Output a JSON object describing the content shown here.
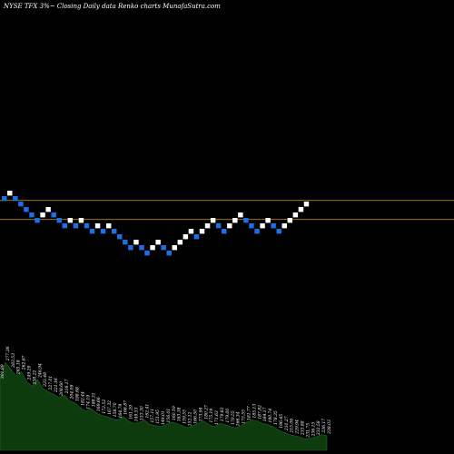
{
  "header": {
    "title": "NYSE TFX  3%~  Closing Daily data  Renko  charts MunafaSutra.com"
  },
  "colors": {
    "background": "#000000",
    "up_brick": "#ffffff",
    "down_brick": "#1e6fe6",
    "level_line": "#b8860b",
    "volume_fill": "#0d3b0d",
    "volume_edge": "#1f6b1f"
  },
  "chart_data": {
    "type": "renko",
    "title": "NYSE TFX  3%~  Closing Daily data  Renko  charts MunafaSutra.com",
    "brick_size_label": "3%~",
    "bricks": [
      {
        "level": 0,
        "dir": "down"
      },
      {
        "level": 1,
        "dir": "up"
      },
      {
        "level": 0,
        "dir": "down"
      },
      {
        "level": -1,
        "dir": "down"
      },
      {
        "level": -2,
        "dir": "down"
      },
      {
        "level": -3,
        "dir": "down"
      },
      {
        "level": -4,
        "dir": "down"
      },
      {
        "level": -3,
        "dir": "up"
      },
      {
        "level": -2,
        "dir": "up"
      },
      {
        "level": -3,
        "dir": "down"
      },
      {
        "level": -4,
        "dir": "down"
      },
      {
        "level": -5,
        "dir": "down"
      },
      {
        "level": -4,
        "dir": "up"
      },
      {
        "level": -5,
        "dir": "down"
      },
      {
        "level": -4,
        "dir": "up"
      },
      {
        "level": -5,
        "dir": "down"
      },
      {
        "level": -6,
        "dir": "down"
      },
      {
        "level": -5,
        "dir": "up"
      },
      {
        "level": -6,
        "dir": "down"
      },
      {
        "level": -5,
        "dir": "up"
      },
      {
        "level": -6,
        "dir": "down"
      },
      {
        "level": -7,
        "dir": "down"
      },
      {
        "level": -8,
        "dir": "down"
      },
      {
        "level": -9,
        "dir": "down"
      },
      {
        "level": -8,
        "dir": "up"
      },
      {
        "level": -9,
        "dir": "down"
      },
      {
        "level": -10,
        "dir": "down"
      },
      {
        "level": -9,
        "dir": "up"
      },
      {
        "level": -8,
        "dir": "up"
      },
      {
        "level": -9,
        "dir": "down"
      },
      {
        "level": -10,
        "dir": "down"
      },
      {
        "level": -9,
        "dir": "up"
      },
      {
        "level": -8,
        "dir": "up"
      },
      {
        "level": -7,
        "dir": "up"
      },
      {
        "level": -6,
        "dir": "up"
      },
      {
        "level": -7,
        "dir": "down"
      },
      {
        "level": -6,
        "dir": "up"
      },
      {
        "level": -5,
        "dir": "up"
      },
      {
        "level": -4,
        "dir": "up"
      },
      {
        "level": -5,
        "dir": "down"
      },
      {
        "level": -6,
        "dir": "down"
      },
      {
        "level": -5,
        "dir": "up"
      },
      {
        "level": -4,
        "dir": "up"
      },
      {
        "level": -3,
        "dir": "up"
      },
      {
        "level": -4,
        "dir": "down"
      },
      {
        "level": -5,
        "dir": "down"
      },
      {
        "level": -6,
        "dir": "down"
      },
      {
        "level": -5,
        "dir": "up"
      },
      {
        "level": -4,
        "dir": "up"
      },
      {
        "level": -5,
        "dir": "down"
      },
      {
        "level": -6,
        "dir": "down"
      },
      {
        "level": -5,
        "dir": "up"
      },
      {
        "level": -4,
        "dir": "up"
      },
      {
        "level": -3,
        "dir": "up"
      },
      {
        "level": -2,
        "dir": "up"
      },
      {
        "level": -1,
        "dir": "up"
      }
    ],
    "reference_levels": [
      -0.7,
      -4.2
    ],
    "volume_labels": [
      "301.89",
      "277.36",
      "283.53",
      "265.18",
      "262.67",
      "249.29",
      "238.22",
      "246.94",
      "233.48",
      "227.01",
      "221.16",
      "208.60",
      "216.17",
      "204.09",
      "198.68",
      "182.44",
      "174.19",
      "188.31",
      "169.66",
      "172.52",
      "167.32",
      "158.70",
      "164.79",
      "166.87",
      "161.29",
      "149.53",
      "153.30",
      "162.41",
      "157.11",
      "151.95",
      "149.01",
      "156.01",
      "160.19",
      "163.38",
      "159.55",
      "152.12",
      "166.50",
      "173.94",
      "180.27",
      "175.19",
      "171.63",
      "179.63",
      "179.00",
      "170.55",
      "166.34",
      "175.55",
      "181.77",
      "185.13",
      "187.82",
      "184.17",
      "190.74",
      "178.35",
      "196.45",
      "210.27",
      "215.06",
      "229.94",
      "233.88",
      "231.75",
      "236.15",
      "232.58",
      "236.17",
      "238.03"
    ],
    "volume": [
      0.62,
      0.78,
      0.72,
      0.66,
      0.7,
      0.61,
      0.57,
      0.63,
      0.55,
      0.52,
      0.5,
      0.47,
      0.49,
      0.44,
      0.42,
      0.38,
      0.35,
      0.37,
      0.33,
      0.31,
      0.3,
      0.28,
      0.27,
      0.3,
      0.26,
      0.24,
      0.25,
      0.27,
      0.23,
      0.22,
      0.21,
      0.23,
      0.25,
      0.24,
      0.22,
      0.2,
      0.22,
      0.24,
      0.26,
      0.23,
      0.21,
      0.24,
      0.23,
      0.21,
      0.2,
      0.22,
      0.25,
      0.27,
      0.26,
      0.24,
      0.23,
      0.21,
      0.18,
      0.16,
      0.14,
      0.13,
      0.12,
      0.1,
      0.11,
      0.12,
      0.14,
      0.13
    ]
  }
}
